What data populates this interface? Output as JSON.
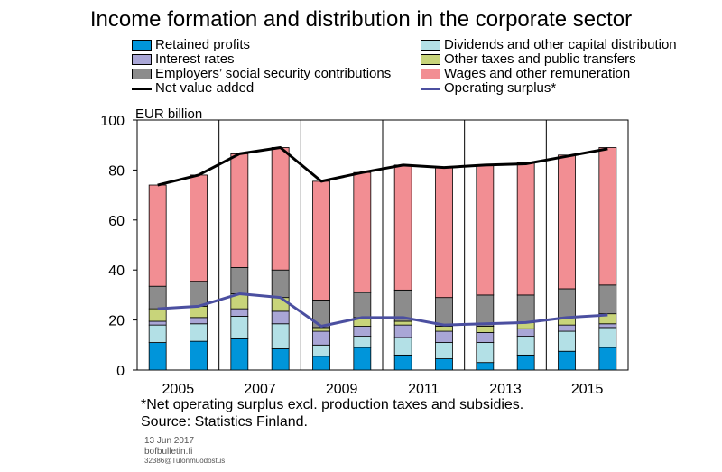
{
  "title": "Income formation and distribution in the corporate sector",
  "chart_data": {
    "type": "bar",
    "stacked": true,
    "ylabel": "EUR billion",
    "ylim": [
      0,
      100
    ],
    "yticks": [
      0,
      20,
      40,
      60,
      80,
      100
    ],
    "grid": false,
    "legend_position": "top",
    "categories": [
      "2005",
      "2006",
      "2007",
      "2008",
      "2009",
      "2010",
      "2011",
      "2012",
      "2013",
      "2014",
      "2015",
      "2016"
    ],
    "xtick_labels": [
      "2005",
      "",
      "2007",
      "",
      "2009",
      "",
      "2011",
      "",
      "2013",
      "",
      "2015",
      ""
    ],
    "series": [
      {
        "name": "Retained profits",
        "kind": "bar",
        "color": "#0095da",
        "values": [
          11,
          11.5,
          12.5,
          8.5,
          5.5,
          9,
          6,
          4.5,
          3,
          6,
          7.5,
          9
        ]
      },
      {
        "name": "Dividends and other capital distribution",
        "kind": "bar",
        "color": "#b3e0e6",
        "values": [
          7,
          7,
          9,
          10,
          4.5,
          4.5,
          7,
          6.5,
          8,
          7.5,
          8,
          8
        ]
      },
      {
        "name": "Interest rates",
        "kind": "bar",
        "color": "#a9a6d6",
        "values": [
          1.5,
          2.5,
          3,
          5,
          5.5,
          4,
          5,
          4.5,
          4,
          3,
          2.5,
          1.5
        ]
      },
      {
        "name": "Other taxes and public transfers",
        "kind": "bar",
        "color": "#c8d47a",
        "values": [
          5,
          4.5,
          6,
          5.5,
          1.5,
          3.5,
          1.5,
          2,
          2.5,
          2.5,
          3,
          4
        ]
      },
      {
        "name": "Employers’ social security contributions",
        "kind": "bar",
        "color": "#8c8c8c",
        "values": [
          9,
          10,
          10.5,
          11,
          11,
          10,
          12.5,
          11.5,
          12.5,
          11,
          11.5,
          11.5
        ]
      },
      {
        "name": "Wages and other remuneration",
        "kind": "bar",
        "color": "#f28e93",
        "values": [
          40.5,
          42.5,
          45.5,
          49,
          47.5,
          48,
          50,
          52,
          52,
          53,
          53.5,
          55
        ]
      },
      {
        "name": "Net value added",
        "kind": "line",
        "color": "#000000",
        "values": [
          74,
          78,
          86.5,
          89,
          75.5,
          79,
          82,
          81,
          82,
          82.5,
          85.5,
          88.5
        ]
      },
      {
        "name": "Operating surplus*",
        "kind": "line",
        "color": "#4b4fa0",
        "values": [
          24.5,
          25.5,
          30.5,
          29,
          17.5,
          21,
          21,
          18,
          18.5,
          19,
          21,
          22
        ]
      }
    ]
  },
  "notes": {
    "footnote": "*Net operating surplus excl. production taxes and subsidies.",
    "source": "Source: Statistics Finland."
  },
  "footer": {
    "date": "13 Jun 2017",
    "site": "bofbulletin.fi",
    "code": "32386@Tulonmuodostus"
  }
}
